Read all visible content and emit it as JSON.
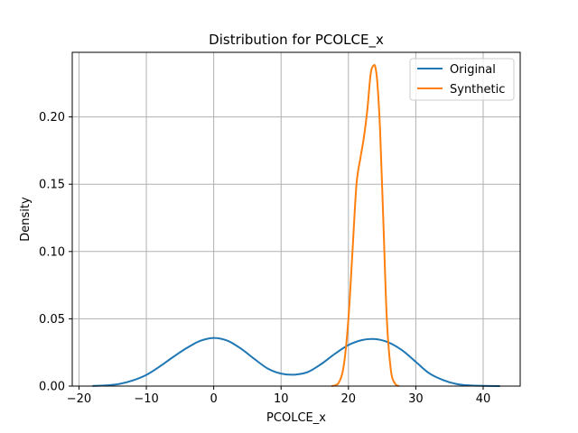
{
  "chart_data": {
    "type": "line",
    "title": "Distribution for PCOLCE_x",
    "xlabel": "PCOLCE_x",
    "ylabel": "Density",
    "xlim": [
      -21,
      45.5
    ],
    "ylim": [
      0,
      0.248
    ],
    "xticks": [
      -20,
      -10,
      0,
      10,
      20,
      30,
      40
    ],
    "xtick_labels": [
      "−20",
      "−10",
      "0",
      "10",
      "20",
      "30",
      "40"
    ],
    "yticks": [
      0.0,
      0.05,
      0.1,
      0.15,
      0.2
    ],
    "ytick_labels": [
      "0.00",
      "0.05",
      "0.10",
      "0.15",
      "0.20"
    ],
    "grid": true,
    "legend_position": "top-right",
    "series": [
      {
        "name": "Original",
        "color": "#1f77b4",
        "x": [
          -18,
          -16,
          -14,
          -12,
          -10,
          -8,
          -6,
          -4,
          -2,
          0,
          2,
          4,
          6,
          8,
          10,
          12,
          14,
          16,
          18,
          20,
          22,
          24,
          26,
          28,
          30,
          32,
          34,
          36,
          38,
          40,
          42.5
        ],
        "y": [
          0.0001,
          0.0005,
          0.0016,
          0.0042,
          0.0083,
          0.0146,
          0.0217,
          0.0283,
          0.0336,
          0.0358,
          0.0338,
          0.028,
          0.0203,
          0.0131,
          0.0093,
          0.0085,
          0.0105,
          0.0165,
          0.024,
          0.0305,
          0.0342,
          0.0349,
          0.0323,
          0.0265,
          0.018,
          0.0095,
          0.0046,
          0.0016,
          0.0005,
          0.0002,
          0.0
        ]
      },
      {
        "name": "Synthetic",
        "color": "#ff7f0e",
        "x": [
          17.5,
          18.5,
          19.3,
          20.0,
          20.6,
          21.2,
          21.8,
          22.3,
          22.8,
          23.3,
          23.7,
          24.0,
          24.3,
          24.7,
          25.2,
          25.7,
          26.3,
          26.9,
          27.5
        ],
        "y": [
          0.0,
          0.002,
          0.015,
          0.05,
          0.1,
          0.15,
          0.17,
          0.185,
          0.205,
          0.232,
          0.238,
          0.237,
          0.225,
          0.19,
          0.12,
          0.05,
          0.012,
          0.002,
          0.0
        ]
      }
    ]
  }
}
